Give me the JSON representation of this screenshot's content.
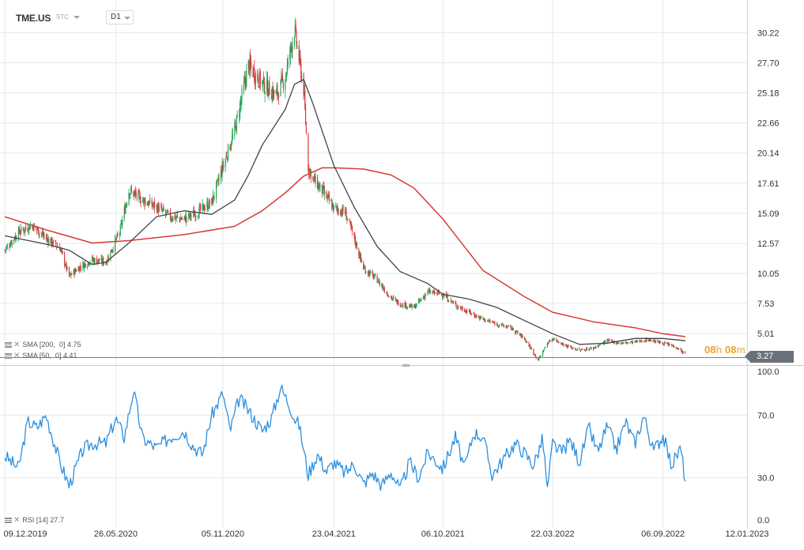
{
  "header": {
    "symbol": "TME.US",
    "chart_type_label": "STC",
    "timeframe": "D1"
  },
  "indicators": {
    "sma200_label": "SMA [200,  0]",
    "sma200_value": "4.75",
    "sma50_label": "SMA [50,  0]",
    "sma50_value": "4.41",
    "rsi_label": "RSI [14]",
    "rsi_value": "27.7"
  },
  "countdown": {
    "hours": "08",
    "h_unit": "h",
    "minutes": "08",
    "m_unit": "m"
  },
  "last_price": "3.27",
  "colors": {
    "up": "#26a65b",
    "down": "#d9383a",
    "sma200": "#d83a34",
    "sma50": "#444444",
    "rsi": "#2b8fdf",
    "grid": "#e4e8ec",
    "price_tag": "#6b7178",
    "countdown": "#f0a030"
  },
  "chart_data": [
    {
      "type": "candlestick",
      "title": "",
      "xlabel": "",
      "ylabel": "",
      "x_ticks": [
        "09.12.2019",
        "26.05.2020",
        "05.11.2020",
        "23.04.2021",
        "06.10.2021",
        "22.03.2022",
        "06.09.2022",
        "12.01.2023"
      ],
      "y_ticks": [
        "30.22",
        "27.70",
        "25.18",
        "22.66",
        "20.14",
        "17.61",
        "15.09",
        "12.57",
        "10.05",
        "7.53",
        "5.01"
      ],
      "ylim": [
        2.5,
        32.7
      ],
      "x_range": [
        "2019-12-09",
        "2023-01-12"
      ],
      "grid": true,
      "last_price_line": 3.27,
      "series": [
        {
          "name": "TME.US",
          "kind": "close",
          "dates": [
            "2019-12-09",
            "2019-12-30",
            "2020-01-20",
            "2020-02-10",
            "2020-03-02",
            "2020-03-16",
            "2020-03-30",
            "2020-04-20",
            "2020-05-11",
            "2020-05-26",
            "2020-06-01",
            "2020-06-15",
            "2020-07-06",
            "2020-07-27",
            "2020-08-17",
            "2020-09-07",
            "2020-09-28",
            "2020-10-19",
            "2020-11-05",
            "2020-11-23",
            "2020-12-14",
            "2021-01-04",
            "2021-01-25",
            "2021-02-08",
            "2021-02-22",
            "2021-03-08",
            "2021-03-15",
            "2021-03-22",
            "2021-04-05",
            "2021-04-23",
            "2021-05-10",
            "2021-05-24",
            "2021-06-07",
            "2021-06-28",
            "2021-07-19",
            "2021-08-02",
            "2021-08-23",
            "2021-09-13",
            "2021-10-06",
            "2021-10-25",
            "2021-11-15",
            "2021-12-06",
            "2021-12-27",
            "2022-01-17",
            "2022-02-07",
            "2022-02-28",
            "2022-03-14",
            "2022-03-22",
            "2022-04-11",
            "2022-05-02",
            "2022-05-23",
            "2022-06-13",
            "2022-07-04",
            "2022-07-25",
            "2022-08-15",
            "2022-09-06",
            "2022-09-26",
            "2022-10-10"
          ],
          "close": [
            12.0,
            13.5,
            14.1,
            13.0,
            12.2,
            9.8,
            10.5,
            11.2,
            11.0,
            12.8,
            13.5,
            17.0,
            16.2,
            15.6,
            14.8,
            14.6,
            15.2,
            16.0,
            19.0,
            22.0,
            27.5,
            26.0,
            25.0,
            26.5,
            30.5,
            25.5,
            19.0,
            18.0,
            17.0,
            15.5,
            15.2,
            13.0,
            10.5,
            9.5,
            8.0,
            7.5,
            7.2,
            8.5,
            8.3,
            7.4,
            6.8,
            6.2,
            5.8,
            5.5,
            4.6,
            2.8,
            4.2,
            4.6,
            4.0,
            3.6,
            3.8,
            4.4,
            4.2,
            4.3,
            4.5,
            4.2,
            3.9,
            3.27
          ]
        },
        {
          "name": "SMA [200, 0]",
          "dates": [
            "2019-12-09",
            "2020-02-10",
            "2020-04-20",
            "2020-06-15",
            "2020-09-07",
            "2020-11-23",
            "2021-01-04",
            "2021-02-08",
            "2021-03-08",
            "2021-04-05",
            "2021-04-23",
            "2021-06-07",
            "2021-07-19",
            "2021-08-23",
            "2021-10-06",
            "2021-12-06",
            "2022-02-07",
            "2022-03-22",
            "2022-05-23",
            "2022-07-25",
            "2022-09-06",
            "2022-10-10"
          ],
          "values": [
            14.8,
            13.7,
            12.6,
            12.8,
            13.3,
            14.0,
            15.3,
            16.8,
            18.2,
            18.9,
            18.9,
            18.8,
            18.3,
            17.2,
            14.6,
            10.3,
            8.1,
            6.8,
            6.0,
            5.5,
            5.0,
            4.75
          ]
        },
        {
          "name": "SMA [50, 0]",
          "dates": [
            "2019-12-09",
            "2020-02-10",
            "2020-03-16",
            "2020-04-20",
            "2020-05-11",
            "2020-06-15",
            "2020-07-27",
            "2020-09-07",
            "2020-10-19",
            "2020-11-23",
            "2020-12-14",
            "2021-01-04",
            "2021-02-08",
            "2021-02-22",
            "2021-03-08",
            "2021-03-22",
            "2021-04-23",
            "2021-05-24",
            "2021-06-28",
            "2021-08-02",
            "2021-09-13",
            "2021-10-06",
            "2021-11-15",
            "2021-12-27",
            "2022-02-07",
            "2022-03-22",
            "2022-05-02",
            "2022-06-13",
            "2022-07-25",
            "2022-09-06",
            "2022-10-10"
          ],
          "values": [
            13.2,
            12.5,
            12.0,
            10.8,
            11.0,
            12.6,
            14.8,
            15.3,
            15.0,
            16.2,
            18.3,
            20.8,
            23.8,
            25.9,
            26.3,
            24.3,
            19.1,
            15.6,
            12.3,
            10.2,
            9.2,
            8.3,
            7.9,
            7.2,
            6.1,
            5.0,
            4.1,
            4.2,
            4.6,
            4.6,
            4.41
          ]
        }
      ]
    },
    {
      "type": "line",
      "title": "",
      "xlabel": "",
      "ylabel": "",
      "y_ticks": [
        "100.0",
        "70.0",
        "30.0",
        "0.0"
      ],
      "ylim": [
        0,
        100
      ],
      "series": [
        {
          "name": "RSI [14]",
          "dates": [
            "2019-12-09",
            "2019-12-30",
            "2020-01-13",
            "2020-01-27",
            "2020-02-10",
            "2020-03-02",
            "2020-03-16",
            "2020-04-06",
            "2020-04-20",
            "2020-05-11",
            "2020-05-26",
            "2020-06-08",
            "2020-06-22",
            "2020-07-06",
            "2020-07-27",
            "2020-08-17",
            "2020-09-07",
            "2020-09-21",
            "2020-10-05",
            "2020-10-19",
            "2020-11-05",
            "2020-11-16",
            "2020-11-30",
            "2020-12-14",
            "2021-01-04",
            "2021-01-18",
            "2021-02-01",
            "2021-02-15",
            "2021-02-22",
            "2021-03-01",
            "2021-03-15",
            "2021-03-29",
            "2021-04-12",
            "2021-04-23",
            "2021-05-10",
            "2021-05-24",
            "2021-06-07",
            "2021-06-21",
            "2021-07-05",
            "2021-07-19",
            "2021-08-02",
            "2021-08-16",
            "2021-08-30",
            "2021-09-13",
            "2021-09-27",
            "2021-10-06",
            "2021-10-25",
            "2021-11-08",
            "2021-11-22",
            "2021-12-06",
            "2021-12-20",
            "2022-01-10",
            "2022-01-24",
            "2022-02-07",
            "2022-02-21",
            "2022-03-07",
            "2022-03-14",
            "2022-03-22",
            "2022-04-04",
            "2022-04-18",
            "2022-05-02",
            "2022-05-16",
            "2022-05-30",
            "2022-06-13",
            "2022-06-27",
            "2022-07-11",
            "2022-07-25",
            "2022-08-08",
            "2022-08-22",
            "2022-09-06",
            "2022-09-19",
            "2022-10-03",
            "2022-10-10"
          ],
          "values": [
            44,
            36,
            66,
            62,
            70,
            40,
            25,
            48,
            52,
            52,
            68,
            56,
            86,
            55,
            49,
            56,
            60,
            50,
            45,
            70,
            84,
            60,
            81,
            73,
            60,
            68,
            88,
            76,
            68,
            64,
            32,
            45,
            34,
            40,
            33,
            39,
            26,
            33,
            25,
            34,
            22,
            40,
            30,
            46,
            40,
            36,
            56,
            36,
            59,
            56,
            32,
            44,
            52,
            46,
            38,
            55,
            22,
            52,
            46,
            54,
            40,
            62,
            46,
            63,
            48,
            66,
            52,
            70,
            47,
            57,
            38,
            49,
            27.7
          ]
        }
      ]
    }
  ]
}
